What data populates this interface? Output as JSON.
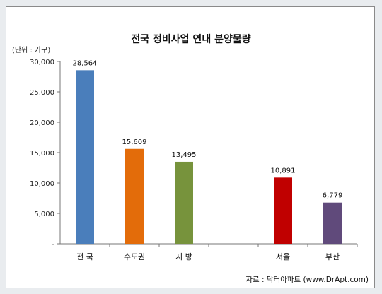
{
  "chart_data": {
    "type": "bar",
    "title": "전국 정비사업 연내 분양물량",
    "unit_label": "(단위 : 가구)",
    "source": "자료 : 닥터아파트 (www.DrApt.com)",
    "categories": [
      "전 국",
      "수도권",
      "지 방",
      "",
      "서울",
      "부산"
    ],
    "values": [
      28564,
      15609,
      13495,
      null,
      10891,
      6779
    ],
    "data_labels": [
      "28,564",
      "15,609",
      "13,495",
      "",
      "10,891",
      "6,779"
    ],
    "colors": [
      "#4a7ebb",
      "#e36c0a",
      "#77933c",
      "",
      "#c00000",
      "#604a7b"
    ],
    "ylim": [
      0,
      30000
    ],
    "yticks": [
      0,
      5000,
      10000,
      15000,
      20000,
      25000,
      30000
    ],
    "ytick_labels": [
      "-",
      "5,000",
      "10,000",
      "15,000",
      "20,000",
      "25,000",
      "30,000"
    ],
    "grid": false,
    "legend": "none"
  }
}
